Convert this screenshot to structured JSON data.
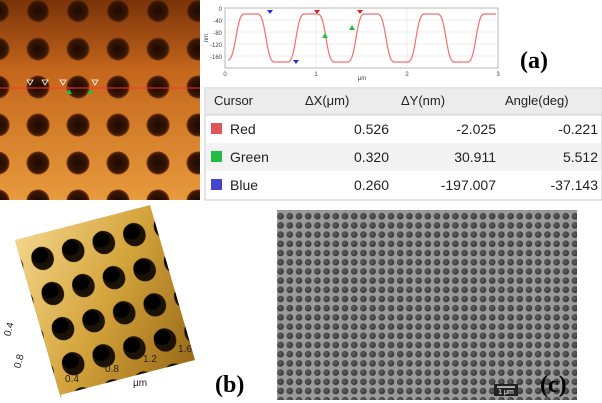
{
  "panel_labels": [
    "(a)",
    "(b)",
    "(c)"
  ],
  "profile": {
    "x_ticks": [
      "0",
      "1",
      "2",
      "3"
    ],
    "x_unit": "μm",
    "y_ticks": [
      "0",
      "-40",
      "-80",
      "-120",
      "-160"
    ],
    "y_unit": "nm"
  },
  "table": {
    "header": [
      "Cursor",
      "ΔX(μm)",
      "ΔY(nm)",
      "Angle(deg)"
    ],
    "rows": [
      [
        "Red",
        "0.526",
        "-2.025",
        "-0.221"
      ],
      [
        "Green",
        "0.320",
        "30.911",
        "5.512"
      ],
      [
        "Blue",
        "0.260",
        "-197.007",
        "-37.143"
      ]
    ]
  },
  "view3d": {
    "x_ticks": [
      "0.4",
      "0.8",
      "1.2",
      "1.6"
    ],
    "x_unit": "μm",
    "y_ticks": [
      "0.4",
      "0.8"
    ]
  },
  "sem": {
    "scale_bar": "1 μm"
  }
}
